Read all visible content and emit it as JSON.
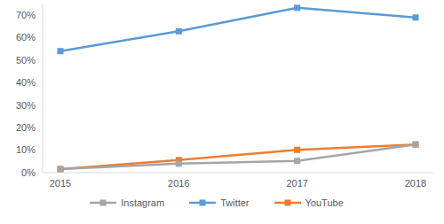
{
  "chart_data": {
    "type": "line",
    "categories": [
      "2015",
      "2016",
      "2017",
      "2018"
    ],
    "series": [
      {
        "name": "Twitter",
        "color": "#5b9bd5",
        "values": [
          53.9,
          62.7,
          73.1,
          68.8
        ]
      },
      {
        "name": "YouTube",
        "color": "#ed7d31",
        "values": [
          1.6,
          5.6,
          10.1,
          12.5
        ]
      },
      {
        "name": "Instagram",
        "color": "#a5a5a5",
        "values": [
          1.6,
          4.0,
          5.2,
          12.5
        ]
      }
    ],
    "ylim": [
      0,
      75
    ],
    "yticks": [
      {
        "value": 0,
        "label": "0%"
      },
      {
        "value": 10,
        "label": "10%"
      },
      {
        "value": 20,
        "label": "20%"
      },
      {
        "value": 30,
        "label": "30%"
      },
      {
        "value": 40,
        "label": "40%"
      },
      {
        "value": 50,
        "label": "50%"
      },
      {
        "value": 60,
        "label": "60%"
      },
      {
        "value": 70,
        "label": "70%"
      }
    ],
    "grid": false,
    "legend": "bottom",
    "marker": "square"
  }
}
